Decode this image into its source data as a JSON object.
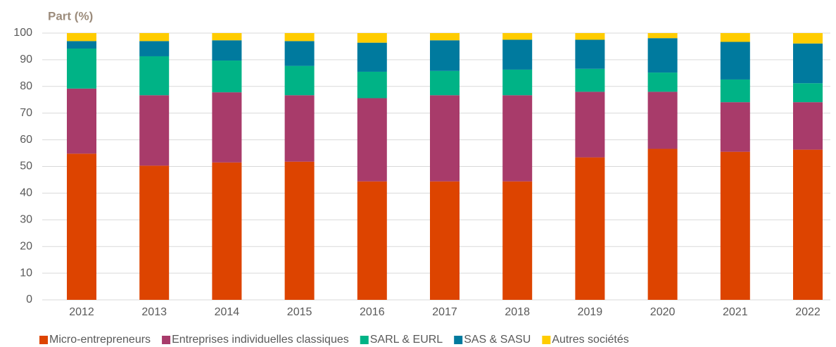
{
  "chart_data": {
    "type": "stacked-bar",
    "y_label": "Part (%)",
    "categories": [
      "2012",
      "2013",
      "2014",
      "2015",
      "2016",
      "2017",
      "2018",
      "2019",
      "2020",
      "2021",
      "2022"
    ],
    "series": [
      {
        "name": "Micro-entrepreneurs",
        "color": "#dd4400",
        "values": [
          54.8,
          50.3,
          51.5,
          51.8,
          44.4,
          44.4,
          44.4,
          53.4,
          56.6,
          55.5,
          56.3
        ]
      },
      {
        "name": "Entreprises individuelles classiques",
        "color": "#a83b6a",
        "values": [
          24.4,
          26.4,
          26.3,
          24.9,
          31.2,
          32.3,
          32.3,
          24.6,
          21.4,
          18.6,
          17.8
        ]
      },
      {
        "name": "SARL & EURL",
        "color": "#00b386",
        "values": [
          15.0,
          14.6,
          11.9,
          11.0,
          9.9,
          9.1,
          9.6,
          8.6,
          7.2,
          8.5,
          7.1
        ]
      },
      {
        "name": "SAS & SASU",
        "color": "#007a9e",
        "values": [
          2.8,
          5.7,
          7.6,
          9.3,
          10.9,
          11.5,
          11.2,
          10.9,
          12.9,
          14.1,
          14.9
        ]
      },
      {
        "name": "Autres sociétés",
        "color": "#ffcc00",
        "values": [
          3.0,
          3.0,
          2.7,
          3.0,
          3.6,
          2.7,
          2.5,
          2.5,
          1.9,
          3.3,
          3.9
        ]
      }
    ],
    "ylim": [
      0,
      100
    ],
    "yticks": [
      0,
      10,
      20,
      30,
      40,
      50,
      60,
      70,
      80,
      90,
      100
    ],
    "grid": true,
    "legend": "bottom"
  }
}
